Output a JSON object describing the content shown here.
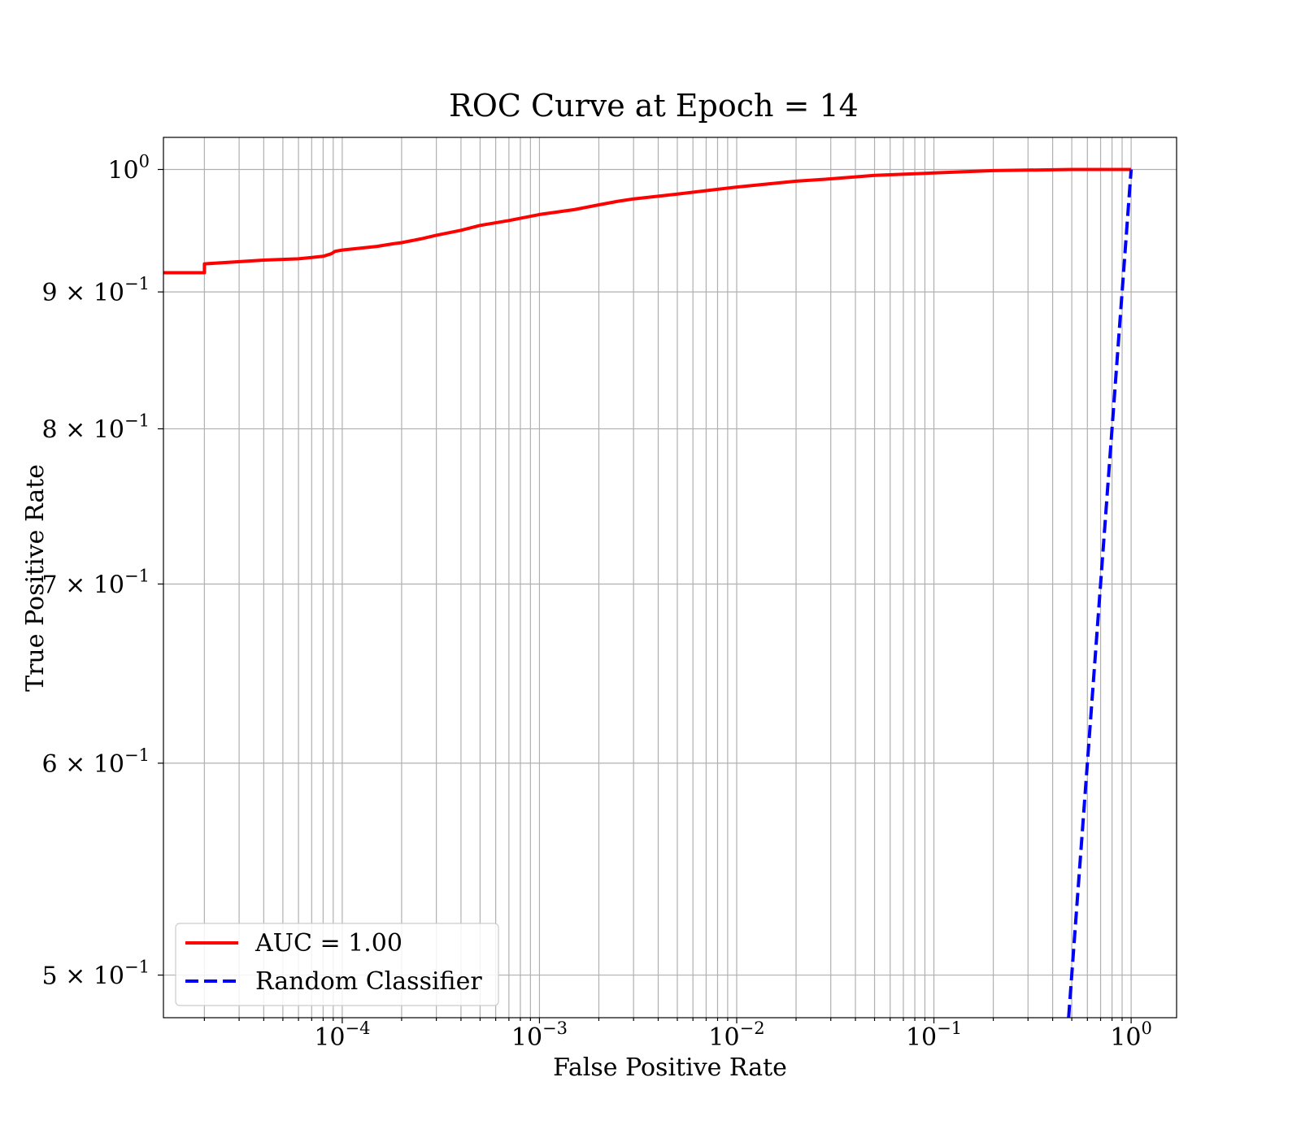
{
  "chart_data": {
    "type": "line",
    "title": "ROC Curve at Epoch = 14",
    "xlabel": "False Positive Rate",
    "ylabel": "True Positive Rate",
    "xscale": "log",
    "yscale": "log",
    "xlim": [
      1.24e-05,
      1.7
    ],
    "ylim": [
      0.482,
      1.028
    ],
    "grid": true,
    "grid_minor": true,
    "legend_position": "lower-left",
    "x_ticks": [
      {
        "value": 0.0001,
        "base": "10",
        "exp": "−4"
      },
      {
        "value": 0.001,
        "base": "10",
        "exp": "−3"
      },
      {
        "value": 0.01,
        "base": "10",
        "exp": "−2"
      },
      {
        "value": 0.1,
        "base": "10",
        "exp": "−1"
      },
      {
        "value": 1,
        "base": "10",
        "exp": "0"
      }
    ],
    "y_ticks": [
      {
        "value": 1.0,
        "mant": "",
        "base": "10",
        "exp": "0"
      },
      {
        "value": 0.9,
        "mant": "9 × ",
        "base": "10",
        "exp": "−1"
      },
      {
        "value": 0.8,
        "mant": "8 × ",
        "base": "10",
        "exp": "−1"
      },
      {
        "value": 0.7,
        "mant": "7 × ",
        "base": "10",
        "exp": "−1"
      },
      {
        "value": 0.6,
        "mant": "6 × ",
        "base": "10",
        "exp": "−1"
      },
      {
        "value": 0.5,
        "mant": "5 × ",
        "base": "10",
        "exp": "−1"
      }
    ],
    "series": [
      {
        "name": "AUC = 1.00",
        "color": "#ff0000",
        "style": "solid",
        "x": [
          1.24e-05,
          2e-05,
          2e-05,
          4e-05,
          6e-05,
          8e-05,
          8.8e-05,
          9.2e-05,
          0.0001,
          0.00015,
          0.00018,
          0.0002,
          0.00025,
          0.0003,
          0.0004,
          0.0005,
          0.0007,
          0.001,
          0.0015,
          0.002,
          0.0025,
          0.003,
          0.005,
          0.01,
          0.02,
          0.03,
          0.05,
          0.1,
          0.2,
          0.5,
          1.0
        ],
        "y": [
          0.915,
          0.915,
          0.922,
          0.925,
          0.926,
          0.928,
          0.93,
          0.932,
          0.933,
          0.936,
          0.938,
          0.939,
          0.942,
          0.945,
          0.949,
          0.953,
          0.957,
          0.962,
          0.966,
          0.97,
          0.973,
          0.975,
          0.979,
          0.985,
          0.99,
          0.992,
          0.995,
          0.997,
          0.999,
          1.0,
          1.0
        ]
      },
      {
        "name": "Random Classifier",
        "color": "#0000ff",
        "style": "dashed",
        "x": [
          0.482,
          1.0
        ],
        "y": [
          0.482,
          1.0
        ]
      }
    ]
  }
}
